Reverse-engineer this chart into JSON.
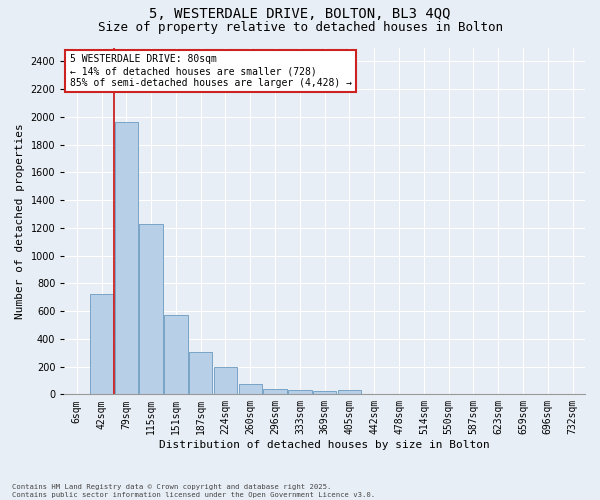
{
  "title1": "5, WESTERDALE DRIVE, BOLTON, BL3 4QQ",
  "title2": "Size of property relative to detached houses in Bolton",
  "xlabel": "Distribution of detached houses by size in Bolton",
  "ylabel": "Number of detached properties",
  "categories": [
    "6sqm",
    "42sqm",
    "79sqm",
    "115sqm",
    "151sqm",
    "187sqm",
    "224sqm",
    "260sqm",
    "296sqm",
    "333sqm",
    "369sqm",
    "405sqm",
    "442sqm",
    "478sqm",
    "514sqm",
    "550sqm",
    "587sqm",
    "623sqm",
    "659sqm",
    "696sqm",
    "732sqm"
  ],
  "values": [
    5,
    720,
    1960,
    1230,
    575,
    305,
    200,
    75,
    40,
    30,
    25,
    30,
    5,
    5,
    2,
    1,
    0,
    0,
    0,
    0,
    0
  ],
  "bar_color": "#b8cfe8",
  "bar_edge_color": "#6b9abf",
  "vline_color": "#cc2222",
  "vline_x_index": 2,
  "annotation_text": "5 WESTERDALE DRIVE: 80sqm\n← 14% of detached houses are smaller (728)\n85% of semi-detached houses are larger (4,428) →",
  "annotation_box_color": "#ffffff",
  "annotation_box_edge": "#cc2222",
  "ylim": [
    0,
    2500
  ],
  "yticks": [
    0,
    200,
    400,
    600,
    800,
    1000,
    1200,
    1400,
    1600,
    1800,
    2000,
    2200,
    2400
  ],
  "bg_color": "#e8eef5",
  "footer_text": "Contains HM Land Registry data © Crown copyright and database right 2025.\nContains public sector information licensed under the Open Government Licence v3.0.",
  "title1_fontsize": 10,
  "title2_fontsize": 9,
  "xlabel_fontsize": 8,
  "ylabel_fontsize": 8,
  "tick_fontsize": 7,
  "annot_fontsize": 7
}
